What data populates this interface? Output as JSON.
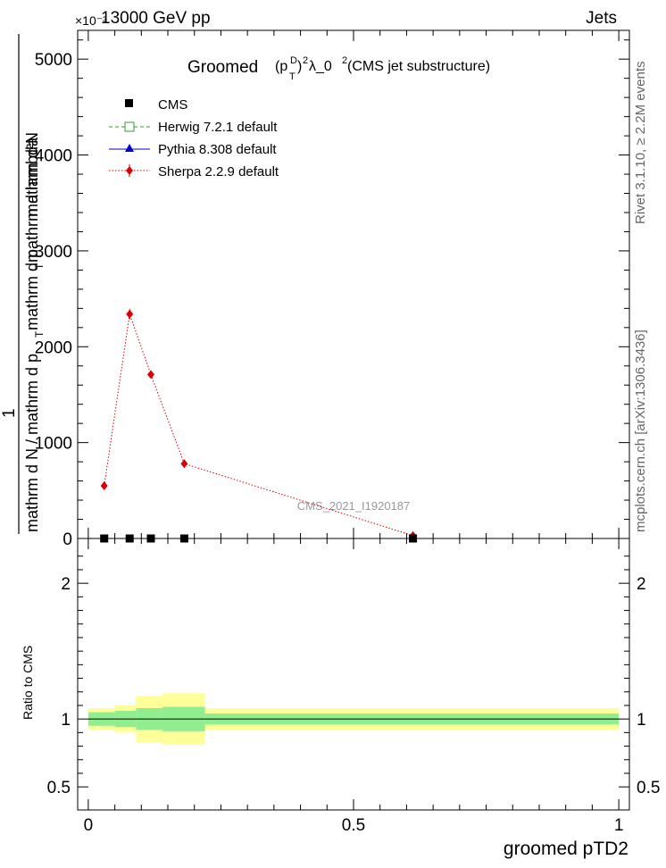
{
  "header": {
    "energy_label": "13000 GeV pp",
    "process_label": "Jets",
    "exponent_label": "×10⁻³"
  },
  "side_labels": {
    "rivet": "Rivet 3.1.10, ≥ 2.2M events",
    "mcplots": "mcplots.cern.ch [arXiv:1306.3436]"
  },
  "chart_data": [
    {
      "type": "line",
      "title": "Groomed (p_T^D)^2 λ_0^2 (CMS jet substructure)",
      "title_parts": {
        "prefix": "Groomed",
        "p": "(p",
        "sup_D": "D",
        "sub_T": "T",
        "close": ")",
        "sup_2a": "2",
        "lambda": " λ_0",
        "sup_2b": "2",
        "suffix": " (CMS jet substructure)"
      },
      "ylabel": {
        "numerator": "1",
        "numerator_line2": "mathrm d²N",
        "line_a": "mathrm d N / mathrm d p",
        "sub_a": "T",
        "line_b": "mathrm d p",
        "sub_b": "T",
        "line_c": " mathrm d lambda"
      },
      "analysis_tag": "CMS_2021_I1920187",
      "ylim": [
        0,
        5300
      ],
      "xlim": [
        -0.02,
        1.02
      ],
      "y_ticks": [
        0,
        1000,
        2000,
        3000,
        4000,
        5000
      ],
      "y_tick_labels": [
        "0",
        "1000",
        "2000",
        "3000",
        "4000",
        "5000"
      ],
      "grid": false,
      "legend_position": "top-left",
      "legend": [
        {
          "label": "CMS",
          "color": "#000000",
          "marker": "square-filled"
        },
        {
          "label": "Herwig 7.2.1 default",
          "color": "#2ca02c",
          "marker": "square-open",
          "dash": "dashed"
        },
        {
          "label": "Pythia 8.308 default",
          "color": "#0000cc",
          "marker": "triangle",
          "dash": "solid"
        },
        {
          "label": "Sherpa 2.2.9 default",
          "color": "#dd0000",
          "marker": "diamond",
          "dash": "dotted"
        }
      ],
      "series": [
        {
          "name": "CMS",
          "x": [
            0.03,
            0.078,
            0.118,
            0.181,
            0.612
          ],
          "y": [
            0,
            0,
            0,
            0,
            0
          ]
        },
        {
          "name": "Sherpa 2.2.9 default",
          "x": [
            0.03,
            0.078,
            0.118,
            0.181,
            0.612
          ],
          "y": [
            550,
            2340,
            1710,
            780,
            30
          ],
          "yerr": [
            25,
            55,
            35,
            20,
            5
          ]
        }
      ]
    },
    {
      "type": "area",
      "ylabel": "Ratio to CMS",
      "xlabel": "groomed pTD2",
      "xlim": [
        -0.02,
        1.02
      ],
      "ylim": [
        0.33,
        2.33
      ],
      "x_ticks": [
        0,
        0.5,
        1
      ],
      "x_tick_labels": [
        "0",
        "0.5",
        "1"
      ],
      "y_ticks": [
        0.5,
        1,
        2
      ],
      "y_tick_labels": [
        "0.5",
        "1",
        "2"
      ],
      "bins": [
        {
          "x_low": 0.0,
          "x_high": 0.05,
          "stat_low": 0.95,
          "stat_high": 1.05,
          "tot_low": 0.92,
          "tot_high": 1.08
        },
        {
          "x_low": 0.05,
          "x_high": 0.09,
          "stat_low": 0.94,
          "stat_high": 1.06,
          "tot_low": 0.9,
          "tot_high": 1.1
        },
        {
          "x_low": 0.09,
          "x_high": 0.14,
          "stat_low": 0.92,
          "stat_high": 1.08,
          "tot_low": 0.83,
          "tot_high": 1.17
        },
        {
          "x_low": 0.14,
          "x_high": 0.22,
          "stat_low": 0.91,
          "stat_high": 1.09,
          "tot_low": 0.81,
          "tot_high": 1.19
        },
        {
          "x_low": 0.22,
          "x_high": 1.0,
          "stat_low": 0.96,
          "stat_high": 1.04,
          "tot_low": 0.92,
          "tot_high": 1.08
        }
      ]
    }
  ]
}
